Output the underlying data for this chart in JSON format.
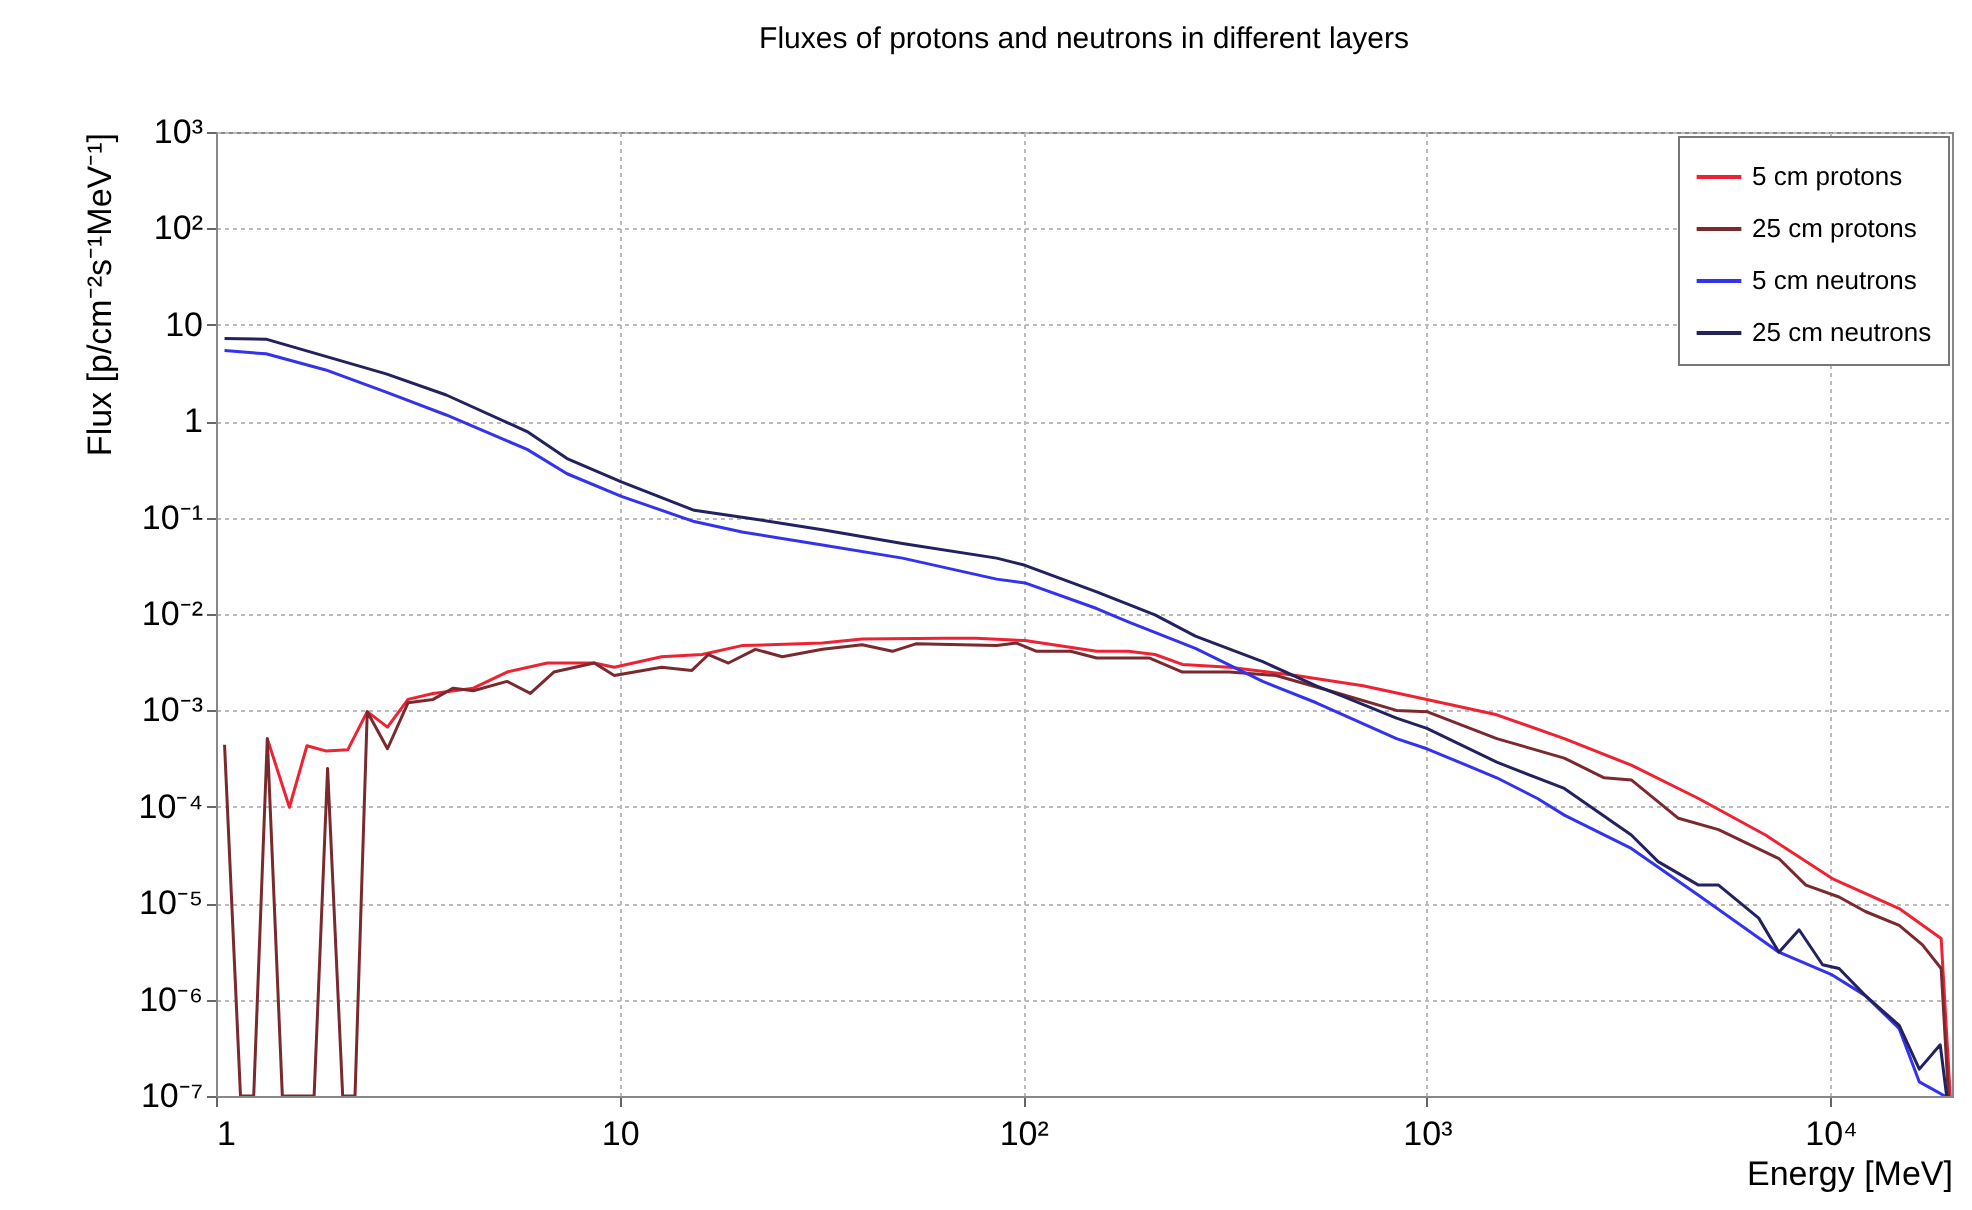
{
  "chart_data": {
    "type": "line",
    "title": "Fluxes of protons and neutrons in different layers",
    "xlabel": "Energy [MeV]",
    "ylabel": "Flux [p/cm⁻²s⁻¹MeV⁻¹]",
    "log": "xy",
    "grid": true,
    "legend": "top right",
    "line_style": "solid",
    "xlim": [
      1,
      20000
    ],
    "ylim": [
      1e-07,
      1000
    ],
    "xticks": [
      1,
      10,
      {
        "value": 100,
        "label": "10²"
      },
      {
        "value": 1000,
        "label": "10³"
      },
      {
        "value": 10000,
        "label": "10⁴"
      }
    ],
    "yticks": [
      {
        "value": 1e-07,
        "label": "10⁻⁷"
      },
      {
        "value": 1e-06,
        "label": "10⁻⁶"
      },
      {
        "value": 1e-05,
        "label": "10⁻⁵"
      },
      {
        "value": 0.0001,
        "label": "10⁻⁴"
      },
      {
        "value": 0.001,
        "label": "10⁻³"
      },
      {
        "value": 0.01,
        "label": "10⁻²"
      },
      {
        "value": 0.1,
        "label": "10⁻¹"
      },
      1,
      10,
      {
        "value": 100,
        "label": "10²"
      },
      {
        "value": 1000,
        "label": "10³"
      }
    ],
    "series": [
      {
        "name": "5 cm protons",
        "color": "#ee2233",
        "x": [
          1.34,
          1.52,
          1.68,
          1.87,
          2.12,
          2.37,
          2.66,
          2.99,
          3.45,
          4.34,
          5.26,
          6.62,
          8.65,
          9.7,
          12.7,
          16.0,
          20.1,
          31.8,
          39.9,
          63.2,
          76.5,
          101,
          152,
          182,
          212,
          248,
          324,
          474,
          695,
          1000,
          1490,
          2190,
          3210,
          4710,
          6900,
          10100,
          14800,
          18800,
          19800
        ],
        "values": [
          0.00051,
          9.9e-05,
          0.00043,
          0.00038,
          0.00039,
          0.00097,
          0.00067,
          0.0013,
          0.0015,
          0.0017,
          0.0025,
          0.0031,
          0.0031,
          0.0028,
          0.0036,
          0.0038,
          0.0047,
          0.005,
          0.0055,
          0.0056,
          0.0056,
          0.0053,
          0.0041,
          0.0041,
          0.0038,
          0.003,
          0.0028,
          0.0023,
          0.0018,
          0.0013,
          0.0009,
          0.00051,
          0.00027,
          0.000122,
          5.1e-05,
          1.8e-05,
          8.8e-06,
          4.3e-06,
          1e-07
        ]
      },
      {
        "name": "25 cm protons",
        "color": "#7a2a2e",
        "x": [
          1.05,
          1.15,
          1.24,
          1.34,
          1.46,
          1.75,
          1.89,
          2.06,
          2.21,
          2.37,
          2.66,
          2.99,
          3.45,
          3.87,
          4.34,
          5.26,
          6.01,
          6.87,
          8.65,
          9.7,
          12.7,
          15.1,
          16.6,
          18.6,
          21.7,
          25.3,
          31.8,
          39.9,
          47.4,
          54.2,
          85.9,
          96.2,
          108,
          131,
          152,
          205,
          248,
          324,
          423,
          574,
          841,
          1000,
          1490,
          2190,
          2750,
          3210,
          4200,
          5280,
          7450,
          8690,
          10500,
          12200,
          14800,
          16900,
          18800,
          19600
        ],
        "values": [
          0.00044,
          1e-07,
          1e-07,
          0.00051,
          1e-07,
          1e-07,
          0.00025,
          1e-07,
          1e-07,
          0.00097,
          0.0004,
          0.0012,
          0.0013,
          0.0017,
          0.0016,
          0.002,
          0.0015,
          0.0025,
          0.0031,
          0.0023,
          0.0028,
          0.0026,
          0.0038,
          0.0031,
          0.0043,
          0.0036,
          0.0043,
          0.0048,
          0.0041,
          0.0049,
          0.0047,
          0.005,
          0.0041,
          0.0041,
          0.0035,
          0.0035,
          0.0025,
          0.0025,
          0.0023,
          0.0016,
          0.001,
          0.00097,
          0.00051,
          0.00032,
          0.0002,
          0.00019,
          7.6e-05,
          5.8e-05,
          2.9e-05,
          1.54e-05,
          1.16e-05,
          8.2e-06,
          5.9e-06,
          3.7e-06,
          2.1e-06,
          1e-07
        ]
      },
      {
        "name": "5 cm neutrons",
        "color": "#3333ee",
        "x": [
          1.05,
          1.33,
          1.87,
          2.64,
          3.72,
          5.9,
          7.41,
          10.1,
          15.3,
          20.1,
          31.8,
          50.2,
          85.9,
          101,
          152,
          182,
          267,
          392,
          532,
          841,
          1000,
          1490,
          1880,
          2190,
          3210,
          4710,
          7450,
          10100,
          12200,
          14800,
          16600,
          19200
        ],
        "values": [
          5.4,
          5.0,
          3.4,
          2.0,
          1.16,
          0.51,
          0.285,
          0.166,
          0.091,
          0.071,
          0.052,
          0.038,
          0.023,
          0.021,
          0.0114,
          0.0083,
          0.0044,
          0.002,
          0.0012,
          0.00051,
          0.0004,
          0.0002,
          0.000122,
          8.2e-05,
          3.7e-05,
          1.21e-05,
          3.1e-06,
          1.8e-06,
          1.1e-06,
          5e-07,
          1.4e-07,
          1e-07
        ]
      },
      {
        "name": "25 cm neutrons",
        "color": "#22225e",
        "x": [
          1.05,
          1.33,
          1.87,
          2.64,
          3.72,
          5.9,
          7.41,
          10.1,
          15.3,
          20.1,
          31.8,
          50.2,
          85.9,
          101,
          152,
          212,
          267,
          392,
          532,
          620,
          841,
          1000,
          1490,
          2190,
          3210,
          3740,
          4710,
          5280,
          6640,
          7450,
          8360,
          9560,
          10500,
          12200,
          14800,
          16600,
          18700,
          19400
        ],
        "values": [
          7.2,
          7.1,
          4.7,
          3.1,
          1.87,
          0.78,
          0.41,
          0.235,
          0.119,
          0.101,
          0.075,
          0.054,
          0.038,
          0.032,
          0.017,
          0.0098,
          0.0059,
          0.0032,
          0.0018,
          0.0014,
          0.00083,
          0.00065,
          0.00029,
          0.000155,
          5.1e-05,
          2.7e-05,
          1.54e-05,
          1.54e-05,
          7e-06,
          3.1e-06,
          5.3e-06,
          2.3e-06,
          2.1e-06,
          1.1e-06,
          5.4e-07,
          1.9e-07,
          3.4e-07,
          1e-07
        ]
      }
    ]
  }
}
